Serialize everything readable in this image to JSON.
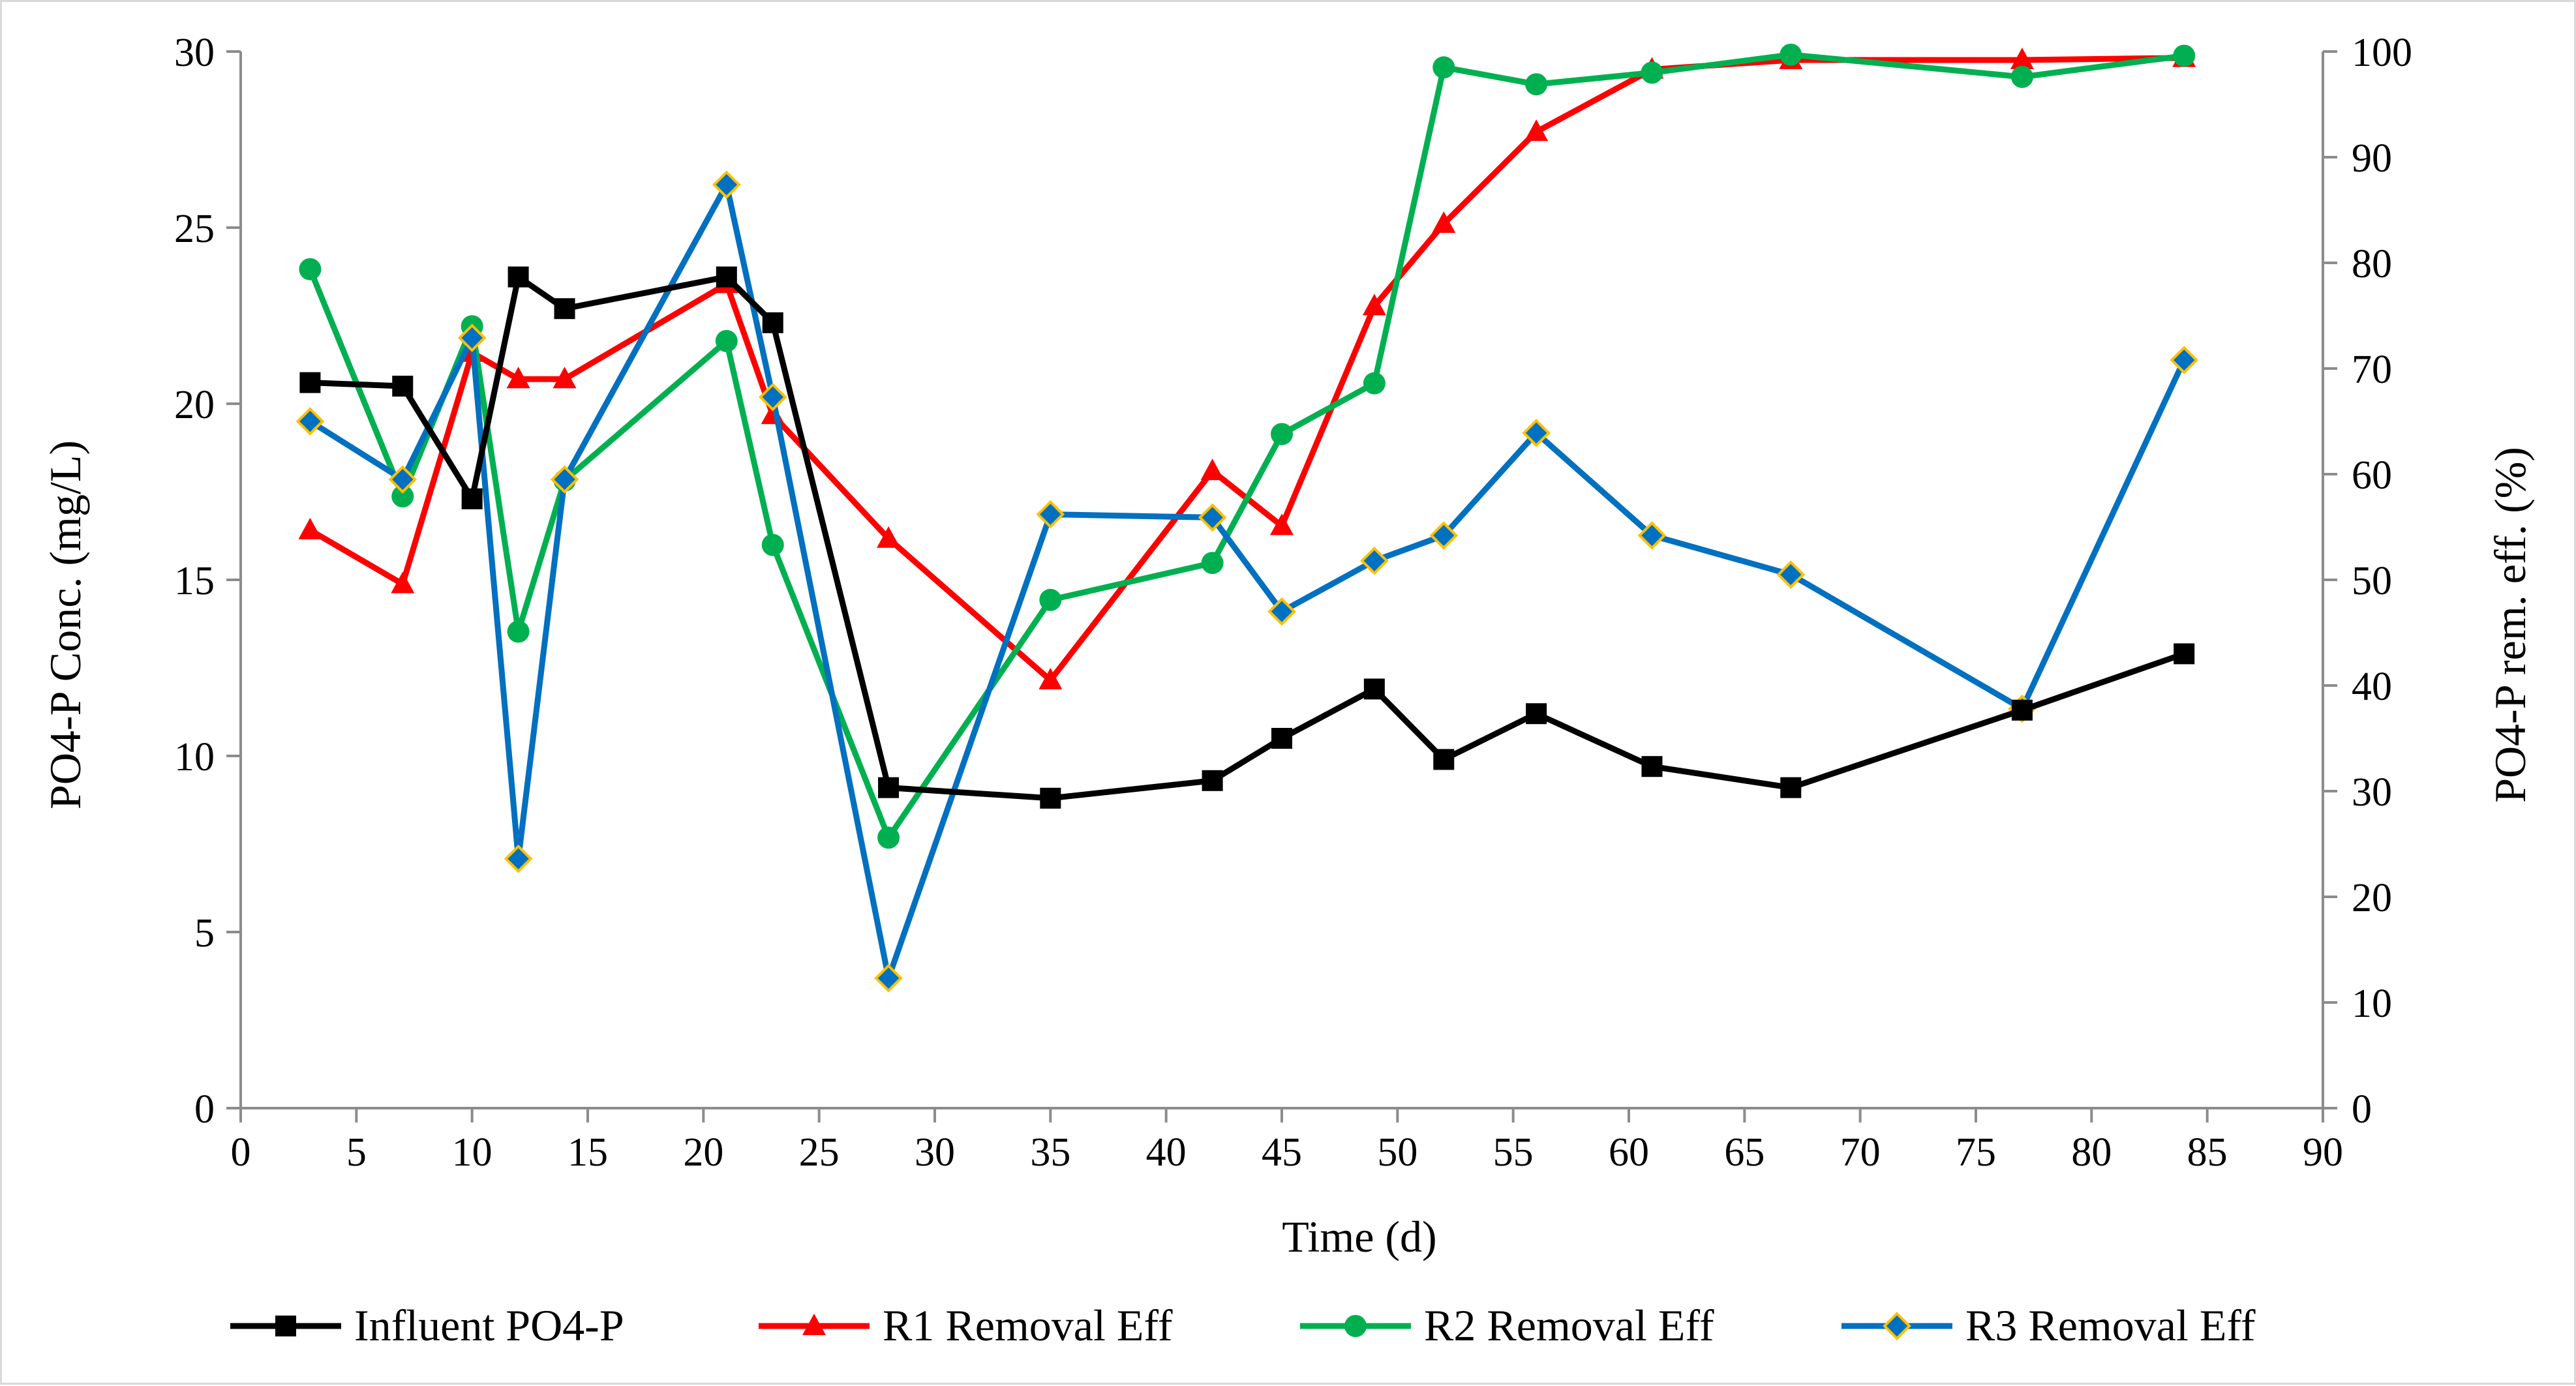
{
  "chart_data": {
    "type": "line",
    "xlabel": "Time (d)",
    "ylabel_left": "PO4-P Conc. (mg/L)",
    "ylabel_right": "PO4-P rem. eff. (%)",
    "xlim": [
      0,
      90
    ],
    "xticks": [
      0,
      5,
      10,
      15,
      20,
      25,
      30,
      35,
      40,
      45,
      50,
      55,
      60,
      65,
      70,
      75,
      80,
      85,
      90
    ],
    "ylim_left": [
      0,
      30
    ],
    "yticks_left": [
      0,
      5,
      10,
      15,
      20,
      25,
      30
    ],
    "ylim_right": [
      0,
      100
    ],
    "yticks_right": [
      0,
      10,
      20,
      30,
      40,
      50,
      60,
      70,
      80,
      90,
      100
    ],
    "legend_position": "bottom",
    "series": [
      {
        "name": "Influent PO4-P",
        "axis": "left",
        "color": "#000000",
        "marker": "square",
        "x": [
          3,
          7,
          10,
          12,
          14,
          21,
          23,
          28,
          35,
          42,
          45,
          49,
          52,
          56,
          61,
          67,
          77,
          84
        ],
        "y": [
          20.6,
          20.5,
          17.3,
          23.6,
          22.7,
          23.6,
          22.3,
          9.1,
          8.8,
          9.3,
          10.5,
          11.9,
          9.9,
          11.2,
          9.7,
          9.1,
          11.3,
          12.9
        ]
      },
      {
        "name": "R1 Removal Eff",
        "axis": "right",
        "color": "#ff0000",
        "marker": "triangle",
        "x": [
          3,
          7,
          10,
          12,
          14,
          21,
          23,
          28,
          35,
          42,
          45,
          49,
          52,
          56,
          61,
          67,
          77,
          84
        ],
        "y": [
          54.7,
          49.6,
          71.5,
          69.0,
          69.0,
          78.0,
          65.6,
          53.9,
          40.5,
          60.3,
          55.1,
          75.9,
          83.7,
          92.4,
          98.3,
          99.2,
          99.2,
          99.4
        ]
      },
      {
        "name": "R2 Removal Eff",
        "axis": "right",
        "color": "#00b050",
        "marker": "circle",
        "x": [
          3,
          7,
          10,
          12,
          14,
          21,
          23,
          28,
          35,
          42,
          45,
          49,
          52,
          56,
          61,
          67,
          77,
          84
        ],
        "y": [
          79.4,
          57.9,
          74.0,
          45.1,
          59.4,
          72.6,
          53.3,
          25.6,
          48.1,
          51.6,
          63.8,
          68.6,
          98.5,
          96.9,
          98.0,
          99.7,
          97.6,
          99.6
        ]
      },
      {
        "name": "R3 Removal Eff",
        "axis": "right",
        "color": "#0070c0",
        "marker": "diamond",
        "x": [
          3,
          7,
          10,
          12,
          14,
          21,
          23,
          28,
          35,
          42,
          45,
          49,
          52,
          56,
          61,
          67,
          77,
          84
        ],
        "y": [
          65.0,
          59.5,
          72.9,
          23.6,
          59.5,
          87.4,
          67.3,
          12.3,
          56.2,
          55.9,
          47.0,
          51.8,
          54.2,
          63.9,
          54.2,
          50.5,
          37.8,
          70.8
        ]
      }
    ]
  }
}
